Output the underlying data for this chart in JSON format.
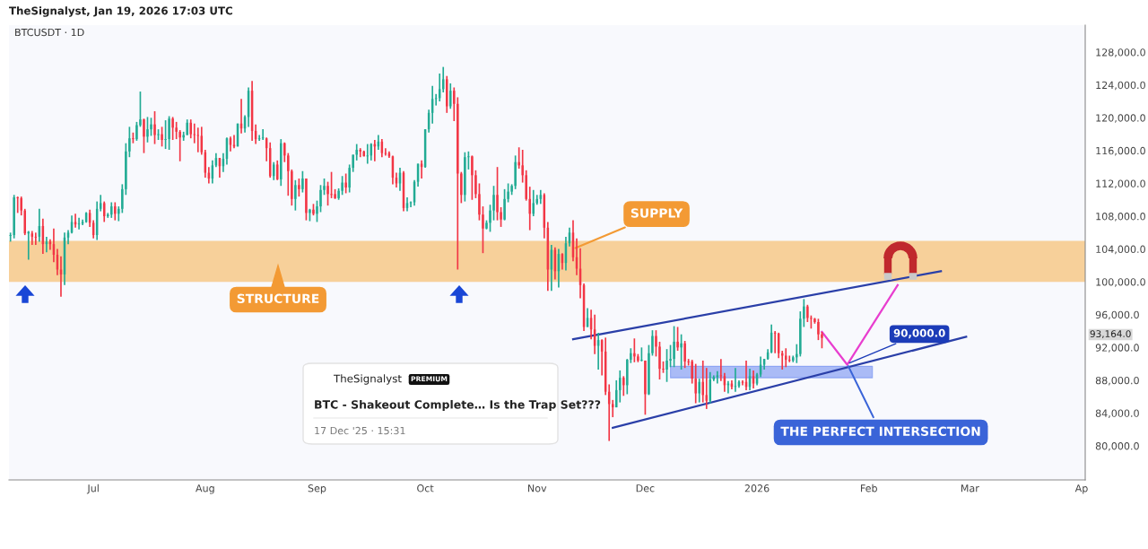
{
  "chart_data": {
    "type": "candlestick",
    "title": "TheSignalyst, Jan 19, 2026 17:03 UTC",
    "subtitle": "BTCUSDT · 1D",
    "x": [
      "2025-06-08",
      "2025-06-09",
      "2025-06-10",
      "2025-06-11",
      "2025-06-12",
      "2025-06-13",
      "2025-06-14",
      "2025-06-15",
      "2025-06-16",
      "2025-06-17",
      "2025-06-18",
      "2025-06-19",
      "2025-06-20",
      "2025-06-21",
      "2025-06-22",
      "2025-06-23",
      "2025-06-24",
      "2025-06-25",
      "2025-06-26",
      "2025-06-27",
      "2025-06-28",
      "2025-06-29",
      "2025-06-30",
      "2025-07-01",
      "2025-07-02",
      "2025-07-03",
      "2025-07-04",
      "2025-07-05",
      "2025-07-06",
      "2025-07-07",
      "2025-07-08",
      "2025-07-09",
      "2025-07-10",
      "2025-07-11",
      "2025-07-12",
      "2025-07-13",
      "2025-07-14",
      "2025-07-15",
      "2025-07-16",
      "2025-07-17",
      "2025-07-18",
      "2025-07-19",
      "2025-07-20",
      "2025-07-21",
      "2025-07-22",
      "2025-07-23",
      "2025-07-24",
      "2025-07-25",
      "2025-07-26",
      "2025-07-27",
      "2025-07-28",
      "2025-07-29",
      "2025-07-30",
      "2025-07-31",
      "2025-08-01",
      "2025-08-02",
      "2025-08-03",
      "2025-08-04",
      "2025-08-05",
      "2025-08-06",
      "2025-08-07",
      "2025-08-08",
      "2025-08-09",
      "2025-08-10",
      "2025-08-11",
      "2025-08-12",
      "2025-08-13",
      "2025-08-14",
      "2025-08-15",
      "2025-08-16",
      "2025-08-17",
      "2025-08-18",
      "2025-08-19",
      "2025-08-20",
      "2025-08-21",
      "2025-08-22",
      "2025-08-23",
      "2025-08-24",
      "2025-08-25",
      "2025-08-26",
      "2025-08-27",
      "2025-08-28",
      "2025-08-29",
      "2025-08-30",
      "2025-08-31",
      "2025-09-01",
      "2025-09-02",
      "2025-09-03",
      "2025-09-04",
      "2025-09-05",
      "2025-09-06",
      "2025-09-07",
      "2025-09-08",
      "2025-09-09",
      "2025-09-10",
      "2025-09-11",
      "2025-09-12",
      "2025-09-13",
      "2025-09-14",
      "2025-09-15",
      "2025-09-16",
      "2025-09-17",
      "2025-09-18",
      "2025-09-19",
      "2025-09-20",
      "2025-09-21",
      "2025-09-22",
      "2025-09-23",
      "2025-09-24",
      "2025-09-25",
      "2025-09-26",
      "2025-09-27",
      "2025-09-28",
      "2025-09-29",
      "2025-09-30",
      "2025-10-01",
      "2025-10-02",
      "2025-10-03",
      "2025-10-04",
      "2025-10-05",
      "2025-10-06",
      "2025-10-07",
      "2025-10-08",
      "2025-10-09",
      "2025-10-10",
      "2025-10-11",
      "2025-10-12",
      "2025-10-13",
      "2025-10-14",
      "2025-10-15",
      "2025-10-16",
      "2025-10-17",
      "2025-10-18",
      "2025-10-19",
      "2025-10-20",
      "2025-10-21",
      "2025-10-22",
      "2025-10-23",
      "2025-10-24",
      "2025-10-25",
      "2025-10-26",
      "2025-10-27",
      "2025-10-28",
      "2025-10-29",
      "2025-10-30",
      "2025-10-31",
      "2025-11-01",
      "2025-11-02",
      "2025-11-03",
      "2025-11-04",
      "2025-11-05",
      "2025-11-06",
      "2025-11-07",
      "2025-11-08",
      "2025-11-09",
      "2025-11-10",
      "2025-11-11",
      "2025-11-12",
      "2025-11-13",
      "2025-11-14",
      "2025-11-15",
      "2025-11-16",
      "2025-11-17",
      "2025-11-18",
      "2025-11-19",
      "2025-11-20",
      "2025-11-21",
      "2025-11-22",
      "2025-11-23",
      "2025-11-24",
      "2025-11-25",
      "2025-11-26",
      "2025-11-27",
      "2025-11-28",
      "2025-11-29",
      "2025-11-30",
      "2025-12-01",
      "2025-12-02",
      "2025-12-03",
      "2025-12-04",
      "2025-12-05",
      "2025-12-06",
      "2025-12-07",
      "2025-12-08",
      "2025-12-09",
      "2025-12-10",
      "2025-12-11",
      "2025-12-12",
      "2025-12-13",
      "2025-12-14",
      "2025-12-15",
      "2025-12-16",
      "2025-12-17",
      "2025-12-18",
      "2025-12-19",
      "2025-12-20",
      "2025-12-21",
      "2025-12-22",
      "2025-12-23",
      "2025-12-24",
      "2025-12-25",
      "2025-12-26",
      "2025-12-27",
      "2025-12-28",
      "2025-12-29",
      "2025-12-30",
      "2025-12-31",
      "2026-01-01",
      "2026-01-02",
      "2026-01-03",
      "2026-01-04",
      "2026-01-05",
      "2026-01-06",
      "2026-01-07",
      "2026-01-08",
      "2026-01-09",
      "2026-01-10",
      "2026-01-11",
      "2026-01-12",
      "2026-01-13",
      "2026-01-14",
      "2026-01-15",
      "2026-01-16",
      "2026-01-17",
      "2026-01-18",
      "2026-01-19"
    ],
    "ohlc": [
      [
        105600,
        106000,
        104900,
        105700
      ],
      [
        105700,
        110600,
        105300,
        110300
      ],
      [
        110300,
        110400,
        108400,
        110200
      ],
      [
        110200,
        110400,
        108100,
        108700
      ],
      [
        108700,
        108900,
        105700,
        105900
      ],
      [
        105900,
        106200,
        102700,
        106100
      ],
      [
        105900,
        106200,
        104500,
        105500
      ],
      [
        105500,
        106000,
        104500,
        105400
      ],
      [
        105500,
        108900,
        104900,
        106800
      ],
      [
        106800,
        107700,
        103400,
        104600
      ],
      [
        104600,
        105500,
        103600,
        104900
      ],
      [
        104900,
        105200,
        103900,
        104600
      ],
      [
        104600,
        106500,
        102400,
        103300
      ],
      [
        103300,
        104000,
        100800,
        101500
      ],
      [
        101500,
        103100,
        98200,
        100900
      ],
      [
        100900,
        106000,
        99600,
        105400
      ],
      [
        105400,
        106300,
        104600,
        106000
      ],
      [
        106000,
        108100,
        105900,
        107300
      ],
      [
        107300,
        108300,
        106600,
        107000
      ],
      [
        107000,
        107800,
        106400,
        107100
      ],
      [
        107100,
        107600,
        106900,
        107300
      ],
      [
        107300,
        108500,
        107200,
        108400
      ],
      [
        108400,
        108800,
        106700,
        107200
      ],
      [
        107200,
        107500,
        105300,
        105700
      ],
      [
        105700,
        109800,
        105100,
        108900
      ],
      [
        108900,
        110600,
        108600,
        109600
      ],
      [
        109600,
        109800,
        107300,
        108000
      ],
      [
        108000,
        108400,
        107800,
        108200
      ],
      [
        108200,
        109700,
        107800,
        109200
      ],
      [
        109200,
        109700,
        107500,
        108300
      ],
      [
        108300,
        109200,
        107400,
        108900
      ],
      [
        108900,
        111900,
        108400,
        111300
      ],
      [
        111300,
        116900,
        110600,
        115900
      ],
      [
        115900,
        118900,
        115200,
        117500
      ],
      [
        117500,
        118200,
        116900,
        117400
      ],
      [
        117400,
        119500,
        117200,
        119100
      ],
      [
        119100,
        123200,
        118900,
        119800
      ],
      [
        119800,
        119900,
        115700,
        117700
      ],
      [
        117700,
        120100,
        117000,
        118600
      ],
      [
        118600,
        120000,
        117800,
        119200
      ],
      [
        119200,
        120800,
        116800,
        117900
      ],
      [
        117900,
        118600,
        117300,
        118000
      ],
      [
        118000,
        118900,
        116500,
        117300
      ],
      [
        117300,
        119700,
        116200,
        117400
      ],
      [
        117400,
        120200,
        116100,
        119900
      ],
      [
        119900,
        120100,
        117300,
        118800
      ],
      [
        118800,
        119500,
        117400,
        118300
      ],
      [
        118300,
        118500,
        114700,
        117600
      ],
      [
        117600,
        118300,
        117200,
        117900
      ],
      [
        117900,
        119800,
        117900,
        119400
      ],
      [
        119400,
        119800,
        117500,
        118000
      ],
      [
        118000,
        119300,
        116900,
        117900
      ],
      [
        117900,
        118800,
        115800,
        117800
      ],
      [
        117800,
        118900,
        115500,
        115800
      ],
      [
        115800,
        116100,
        112700,
        113300
      ],
      [
        113300,
        114000,
        112000,
        112600
      ],
      [
        112600,
        114800,
        112000,
        114200
      ],
      [
        114200,
        115700,
        114000,
        115100
      ],
      [
        115100,
        115100,
        112700,
        114100
      ],
      [
        114100,
        115700,
        113400,
        115000
      ],
      [
        115000,
        117600,
        114300,
        117500
      ],
      [
        117500,
        117700,
        115900,
        116700
      ],
      [
        116700,
        117900,
        116300,
        116500
      ],
      [
        116500,
        119300,
        116500,
        119300
      ],
      [
        119300,
        122300,
        118100,
        118700
      ],
      [
        118700,
        120300,
        118200,
        120100
      ],
      [
        120100,
        123700,
        118900,
        123300
      ],
      [
        123300,
        124500,
        117200,
        118400
      ],
      [
        118400,
        119200,
        116800,
        117400
      ],
      [
        117400,
        117900,
        117200,
        117500
      ],
      [
        117500,
        118600,
        117300,
        117600
      ],
      [
        117500,
        117600,
        114700,
        116300
      ],
      [
        116300,
        117000,
        112700,
        112900
      ],
      [
        112900,
        114600,
        112400,
        114300
      ],
      [
        114300,
        114800,
        112400,
        112500
      ],
      [
        112500,
        117400,
        111700,
        116900
      ],
      [
        116900,
        117000,
        114600,
        115400
      ],
      [
        115400,
        115700,
        110500,
        113500
      ],
      [
        113500,
        113700,
        109300,
        110100
      ],
      [
        110100,
        112400,
        108700,
        111800
      ],
      [
        111800,
        112600,
        110400,
        111300
      ],
      [
        111300,
        113500,
        110900,
        112600
      ],
      [
        112600,
        112600,
        107500,
        108400
      ],
      [
        108400,
        108900,
        107400,
        108800
      ],
      [
        108800,
        109500,
        108100,
        108300
      ],
      [
        108300,
        109900,
        107300,
        109200
      ],
      [
        109200,
        111800,
        108500,
        111200
      ],
      [
        111200,
        112600,
        110600,
        111700
      ],
      [
        111700,
        112200,
        109300,
        110700
      ],
      [
        110700,
        113400,
        110200,
        110600
      ],
      [
        110700,
        111300,
        110100,
        110200
      ],
      [
        110200,
        111400,
        110000,
        111100
      ],
      [
        111100,
        112900,
        110600,
        112100
      ],
      [
        112100,
        113200,
        110800,
        111500
      ],
      [
        111500,
        114300,
        110900,
        113900
      ],
      [
        113900,
        115500,
        113400,
        115500
      ],
      [
        115500,
        116800,
        114800,
        116100
      ],
      [
        116100,
        116300,
        115200,
        115900
      ],
      [
        115900,
        116000,
        115300,
        115300
      ],
      [
        115300,
        116800,
        114400,
        115400
      ],
      [
        115400,
        116900,
        114800,
        116800
      ],
      [
        116800,
        117300,
        114700,
        116500
      ],
      [
        116500,
        117900,
        116100,
        117100
      ],
      [
        117100,
        117400,
        115200,
        115700
      ],
      [
        115700,
        116300,
        115400,
        115600
      ],
      [
        115700,
        115900,
        115100,
        115300
      ],
      [
        115300,
        115400,
        111900,
        112700
      ],
      [
        112700,
        113300,
        111500,
        112000
      ],
      [
        112000,
        113900,
        111100,
        113300
      ],
      [
        113300,
        113500,
        108600,
        109000
      ],
      [
        109000,
        110300,
        108600,
        109600
      ],
      [
        109600,
        109800,
        109100,
        109700
      ],
      [
        109700,
        112400,
        109300,
        112200
      ],
      [
        112200,
        114400,
        111600,
        114400
      ],
      [
        114400,
        114800,
        112600,
        114000
      ],
      [
        114000,
        118600,
        113900,
        118600
      ],
      [
        118600,
        121000,
        118200,
        120600
      ],
      [
        120600,
        123900,
        119300,
        122300
      ],
      [
        122300,
        122900,
        121500,
        122400
      ],
      [
        122400,
        125400,
        122000,
        123500
      ],
      [
        123500,
        126200,
        123100,
        124700
      ],
      [
        124700,
        125100,
        120600,
        121400
      ],
      [
        121400,
        124200,
        121100,
        123300
      ],
      [
        123300,
        123700,
        119600,
        121700
      ],
      [
        121700,
        122500,
        101500,
        113200
      ],
      [
        113200,
        113400,
        109600,
        110600
      ],
      [
        110600,
        115800,
        109800,
        115200
      ],
      [
        115200,
        115900,
        113700,
        115300
      ],
      [
        115300,
        115400,
        110000,
        113000
      ],
      [
        113000,
        113600,
        110200,
        110700
      ],
      [
        110700,
        112000,
        107500,
        108200
      ],
      [
        108200,
        109200,
        103500,
        106500
      ],
      [
        106500,
        107500,
        106400,
        107200
      ],
      [
        107200,
        109400,
        106100,
        108700
      ],
      [
        108700,
        111700,
        107500,
        110600
      ],
      [
        110600,
        114000,
        107500,
        108500
      ],
      [
        108500,
        109100,
        106700,
        107600
      ],
      [
        107600,
        111300,
        107500,
        110100
      ],
      [
        110100,
        112000,
        109700,
        111000
      ],
      [
        111000,
        111900,
        110600,
        111700
      ],
      [
        111700,
        115400,
        111300,
        114600
      ],
      [
        114600,
        116400,
        113800,
        114200
      ],
      [
        114200,
        116100,
        112100,
        113000
      ],
      [
        113000,
        113600,
        109900,
        110100
      ],
      [
        110100,
        111600,
        106300,
        108300
      ],
      [
        108300,
        111200,
        108000,
        109600
      ],
      [
        109600,
        110600,
        109400,
        110100
      ],
      [
        110100,
        111200,
        109500,
        110600
      ],
      [
        110600,
        110800,
        105300,
        106600
      ],
      [
        106600,
        107300,
        98900,
        101500
      ],
      [
        101500,
        104500,
        98900,
        103900
      ],
      [
        103900,
        104200,
        100300,
        101300
      ],
      [
        101300,
        104000,
        99300,
        103400
      ],
      [
        103400,
        103500,
        101500,
        102300
      ],
      [
        102300,
        105500,
        101400,
        104700
      ],
      [
        104700,
        106600,
        104300,
        106000
      ],
      [
        106000,
        107500,
        102500,
        103000
      ],
      [
        103000,
        105300,
        100800,
        101600
      ],
      [
        101600,
        104100,
        98000,
        99600
      ],
      [
        99600,
        99800,
        94000,
        94500
      ],
      [
        94500,
        96800,
        94500,
        95600
      ],
      [
        95600,
        96600,
        93000,
        94200
      ],
      [
        94200,
        96000,
        91200,
        92200
      ],
      [
        92200,
        93800,
        89300,
        92900
      ],
      [
        92900,
        93000,
        88600,
        91500
      ],
      [
        91500,
        93200,
        86200,
        86600
      ],
      [
        86600,
        87500,
        80600,
        85100
      ],
      [
        85100,
        85600,
        83500,
        84700
      ],
      [
        84700,
        88000,
        84700,
        86800
      ],
      [
        86800,
        89200,
        85300,
        88300
      ],
      [
        88300,
        88500,
        86100,
        87400
      ],
      [
        87400,
        90600,
        86300,
        90500
      ],
      [
        90500,
        91900,
        90100,
        91300
      ],
      [
        91300,
        93100,
        90200,
        90900
      ],
      [
        90900,
        91200,
        90200,
        90400
      ],
      [
        90400,
        92000,
        90300,
        90500
      ],
      [
        90400,
        90400,
        83800,
        86300
      ],
      [
        86300,
        92300,
        86200,
        91300
      ],
      [
        91300,
        94100,
        91000,
        93400
      ],
      [
        93400,
        94100,
        90900,
        92100
      ],
      [
        92100,
        92700,
        88100,
        89400
      ],
      [
        89400,
        90300,
        88900,
        89300
      ],
      [
        89300,
        91800,
        87800,
        90400
      ],
      [
        90400,
        92300,
        89600,
        90600
      ],
      [
        90600,
        94600,
        89600,
        92700
      ],
      [
        92700,
        94500,
        91600,
        92000
      ],
      [
        92000,
        93600,
        89300,
        92500
      ],
      [
        92500,
        92800,
        89500,
        90300
      ],
      [
        90300,
        90600,
        89800,
        90200
      ],
      [
        90300,
        90500,
        87600,
        88200
      ],
      [
        88200,
        90000,
        85200,
        86400
      ],
      [
        86400,
        88200,
        85300,
        87800
      ],
      [
        87800,
        90400,
        85300,
        86200
      ],
      [
        86200,
        89500,
        84500,
        85500
      ],
      [
        85500,
        89000,
        85200,
        88100
      ],
      [
        88100,
        88600,
        87900,
        88400
      ],
      [
        88400,
        89100,
        87600,
        88600
      ],
      [
        88600,
        90600,
        87900,
        88500
      ],
      [
        88500,
        88900,
        86600,
        87400
      ],
      [
        87400,
        87900,
        86400,
        87600
      ],
      [
        87600,
        88000,
        86900,
        87200
      ],
      [
        87200,
        89500,
        86600,
        87300
      ],
      [
        87300,
        88000,
        87100,
        87800
      ],
      [
        87800,
        88000,
        87400,
        87700
      ],
      [
        87800,
        90400,
        86800,
        87200
      ],
      [
        87200,
        89400,
        86800,
        88500
      ],
      [
        88500,
        89200,
        87000,
        87600
      ],
      [
        87600,
        88900,
        87400,
        88700
      ],
      [
        88700,
        90900,
        88400,
        89900
      ],
      [
        89900,
        90600,
        89300,
        90600
      ],
      [
        90600,
        91800,
        90500,
        91400
      ],
      [
        91400,
        94800,
        91300,
        93800
      ],
      [
        93800,
        94000,
        91300,
        93700
      ],
      [
        93700,
        93800,
        90700,
        91300
      ],
      [
        91300,
        91600,
        89300,
        91000
      ],
      [
        91000,
        91900,
        89600,
        90500
      ],
      [
        90500,
        91000,
        90200,
        90400
      ],
      [
        90400,
        91000,
        90200,
        90800
      ],
      [
        90800,
        92400,
        90100,
        91200
      ],
      [
        91200,
        96400,
        90900,
        95500
      ],
      [
        95500,
        97900,
        94500,
        97000
      ],
      [
        97000,
        97200,
        95100,
        95600
      ],
      [
        95600,
        95900,
        94300,
        95500
      ],
      [
        95500,
        95600,
        94900,
        95100
      ],
      [
        95100,
        95500,
        92900,
        93600
      ],
      [
        93600,
        93900,
        91900,
        93164
      ]
    ],
    "series": [
      {
        "type": "line",
        "x": [
          "2025-11-11",
          "2026-02-21"
        ],
        "values": [
          93000,
          101300
        ],
        "color": "#2a3fa8"
      },
      {
        "type": "line",
        "x": [
          "2025-11-22",
          "2026-02-28"
        ],
        "values": [
          82200,
          93300
        ],
        "color": "#2a3fa8"
      },
      {
        "type": "line",
        "x": [
          "2026-01-19",
          "2026-01-26",
          "2026-02-09"
        ],
        "values": [
          93900,
          89900,
          99600
        ],
        "color": "#e83ecf"
      },
      {
        "type": "line",
        "x": [
          "2025-12-08",
          "2026-02-02"
        ],
        "values": [
          null,
          null
        ],
        "lower": [
          88300,
          88300
        ],
        "upper": [
          89700,
          89700
        ],
        "color": "#5b7ef0"
      }
    ],
    "bands": [
      {
        "axis": "y",
        "from": 100000,
        "to": 105000,
        "color": "#f5a737"
      }
    ],
    "annotations": [
      {
        "text": "SUPPLY",
        "x": "2025-11-11",
        "y": 104000
      },
      {
        "text": "THE PERFECT INTERSECTION",
        "x": "2026-01-26",
        "y": 90000
      },
      {
        "text": "90,000.0",
        "x": "2026-01-26",
        "y": 90000
      },
      "STRUCTURE",
      "93,164.0",
      "TheSignalyst",
      "PREMIUM",
      "BTC - Shakeout Complete… Is the Trap Set???",
      "17 Dec '25 · 15:31"
    ],
    "xlim": [
      "2025-06-07T14:00",
      "2026-04-02"
    ],
    "xticks": [
      {
        "value": "2025-07-01",
        "label": "Jul"
      },
      {
        "value": "2025-08-01",
        "label": "Aug"
      },
      {
        "value": "2025-09-01",
        "label": "Sep"
      },
      {
        "value": "2025-10-01",
        "label": "Oct"
      },
      {
        "value": "2025-11-01",
        "label": "Nov"
      },
      {
        "value": "2025-12-01",
        "label": "Dec"
      },
      {
        "value": "2026-01-01",
        "label": "2026"
      },
      {
        "value": "2026-02-01",
        "label": "Feb"
      },
      {
        "value": "2026-03-01",
        "label": "Mar"
      },
      {
        "value": "2026-04-01",
        "label": "Ap"
      }
    ],
    "ylim": [
      75850,
      131300
    ],
    "yticks": [
      {
        "value": 80000,
        "label": "80,000.0"
      },
      {
        "value": 84000,
        "label": "84,000.0"
      },
      {
        "value": 88000,
        "label": "88,000.0"
      },
      {
        "value": 92000,
        "label": "92,000.0"
      },
      {
        "value": 96000,
        "label": "96,000.0"
      },
      {
        "value": 100000,
        "label": "100,000.0"
      },
      {
        "value": 104000,
        "label": "104,000.0"
      },
      {
        "value": 108000,
        "label": "108,000.0"
      },
      {
        "value": 112000,
        "label": "112,000.0"
      },
      {
        "value": 116000,
        "label": "116,000.0"
      },
      {
        "value": 120000,
        "label": "120,000.0"
      },
      {
        "value": 124000,
        "label": "124,000.0"
      },
      {
        "value": 128000,
        "label": "128,000.0"
      }
    ],
    "grid": false,
    "legend": false
  }
}
